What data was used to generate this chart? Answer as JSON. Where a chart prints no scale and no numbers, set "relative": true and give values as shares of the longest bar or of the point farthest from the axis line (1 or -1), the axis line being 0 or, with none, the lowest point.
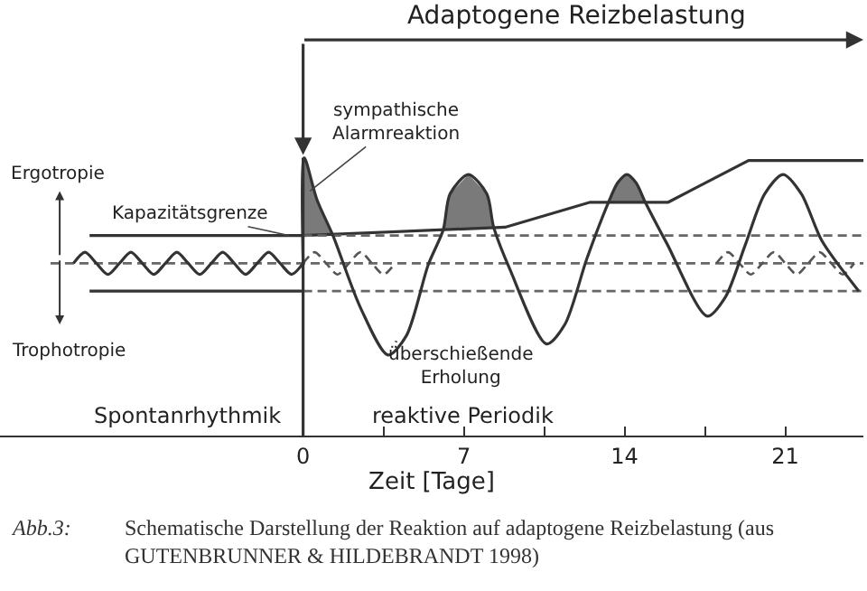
{
  "chart_data": {
    "type": "line",
    "title": "Adaptogene Reizbelastung",
    "xlabel": "Zeit [Tage]",
    "relative": true,
    "xlim": [
      -13.2,
      24.4
    ],
    "xticks": [
      0,
      {
        "value": 3.5,
        "label": null
      },
      7,
      {
        "value": 10.5,
        "label": null
      },
      14,
      {
        "value": 17.5,
        "label": null
      },
      21
    ],
    "tick_labels": "x",
    "marker": "none",
    "series": [
      {
        "line_style": "solid",
        "color": "#333333",
        "x": [
          -9.3,
          0,
          8.8,
          12.5,
          15.9,
          19.4,
          24.4
        ],
        "values": [
          0.72,
          0.72,
          0.75,
          0.84,
          0.84,
          0.99,
          0.99
        ]
      },
      {
        "line_style": "solid",
        "color": "#333333",
        "x": [
          -9.3,
          0
        ],
        "values": [
          0.52,
          0.52
        ]
      },
      {
        "line_style": "dashed",
        "color": "#666666",
        "x": [
          0,
          24.4
        ],
        "values": [
          0.72,
          0.72
        ]
      },
      {
        "line_style": "dashed",
        "color": "#666666",
        "x": [
          -11,
          24.4
        ],
        "values": [
          0.62,
          0.62
        ]
      },
      {
        "line_style": "dashed",
        "color": "#666666",
        "x": [
          0,
          24.4
        ],
        "values": [
          0.52,
          0.52
        ]
      },
      {
        "line_style": "solid",
        "color": "#333333",
        "x": [
          -10,
          -9.5,
          -9,
          -8.5,
          -8,
          -7.5,
          -7,
          -6.5,
          -6,
          -5.5,
          -5,
          -4.5,
          -4,
          -3.5,
          -3,
          -2.5,
          -2,
          -1.5,
          -1,
          -0.5,
          0
        ],
        "values": [
          0.62,
          0.66,
          0.62,
          0.58,
          0.62,
          0.66,
          0.62,
          0.58,
          0.62,
          0.66,
          0.62,
          0.58,
          0.62,
          0.66,
          0.62,
          0.58,
          0.62,
          0.66,
          0.62,
          0.58,
          0.62
        ]
      },
      {
        "line_style": "dashed",
        "color": "#555555",
        "x": [
          0,
          0.5,
          1,
          1.5,
          2,
          2.5,
          3,
          3.5,
          4
        ],
        "values": [
          0.62,
          0.66,
          0.62,
          0.58,
          0.62,
          0.66,
          0.62,
          0.58,
          0.62
        ]
      },
      {
        "line_style": "dashed",
        "color": "#555555",
        "x": [
          18,
          18.5,
          19,
          19.5,
          20,
          20.5,
          21,
          21.5,
          22,
          22.5,
          23,
          23.5,
          24
        ],
        "values": [
          0.62,
          0.66,
          0.62,
          0.58,
          0.62,
          0.66,
          0.62,
          0.58,
          0.62,
          0.66,
          0.62,
          0.58,
          0.62
        ]
      },
      {
        "type": "area",
        "color": "#7a7a7a",
        "x": [
          0,
          0.05,
          0.6,
          1.3
        ],
        "values": [
          0.72,
          1.0,
          0.85,
          0.72
        ]
      },
      {
        "type": "area",
        "color": "#7a7a7a",
        "x": [
          6.1,
          6.4,
          7.2,
          8.0,
          8.3
        ],
        "values": [
          0.74,
          0.87,
          0.94,
          0.87,
          0.75
        ]
      },
      {
        "type": "area",
        "color": "#7a7a7a",
        "x": [
          13.3,
          13.7,
          14.1,
          14.5,
          14.9
        ],
        "values": [
          0.84,
          0.91,
          0.94,
          0.91,
          0.84
        ]
      },
      {
        "line_style": "solid",
        "color": "#333333",
        "x": [
          0,
          0.05,
          0.6,
          1.3,
          2.5,
          3.7,
          4.5,
          5.45,
          6.1,
          6.4,
          7.2,
          8.0,
          8.3,
          9.0,
          10.6,
          11.4,
          12.35,
          13.3,
          13.7,
          14.1,
          14.5,
          14.9,
          15.85,
          17.6,
          18.4,
          19.25,
          20.1,
          20.9,
          21.7,
          22.6,
          24.2
        ],
        "values": [
          0.62,
          1.0,
          0.85,
          0.72,
          0.46,
          0.29,
          0.36,
          0.615,
          0.74,
          0.87,
          0.94,
          0.87,
          0.75,
          0.6,
          0.33,
          0.4,
          0.635,
          0.84,
          0.91,
          0.94,
          0.91,
          0.84,
          0.69,
          0.43,
          0.5,
          0.685,
          0.87,
          0.94,
          0.87,
          0.7,
          0.52
        ]
      }
    ],
    "ref_lines": [
      {
        "axis": "x",
        "value": 0,
        "color": "#333333",
        "line_style": "solid"
      }
    ],
    "annotations": [
      {
        "text": "sympathische\nAlarmreaktion",
        "x": 0.3,
        "y": 0.88
      },
      {
        "text": "Kapazitätsgrenze",
        "x": -0.6,
        "y": 0.72
      },
      {
        "text": "überschießende\nErholung",
        "x": 4.0,
        "y": 0.34
      },
      "Ergotropie",
      "Trophotropie",
      "Spontanrhythmik",
      "reaktive Periodik",
      "Abb.3:",
      "Schematische Darstellung der Reaktion auf adaptogene Reizbelastung (aus\nGUTENBRUNNER & HILDEBRANDT 1998)"
    ]
  }
}
